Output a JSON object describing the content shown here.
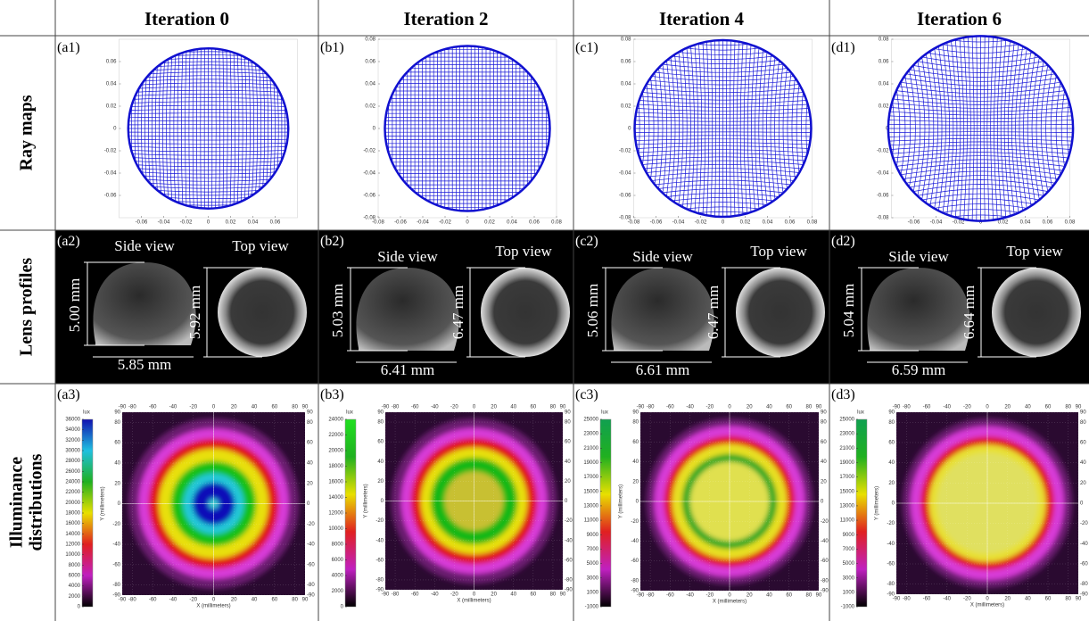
{
  "columns": [
    "Iteration 0",
    "Iteration 2",
    "Iteration 4",
    "Iteration 6"
  ],
  "rows": [
    [
      "Ray maps"
    ],
    [
      "Lens profiles"
    ],
    [
      "Illuminance",
      "distributions"
    ]
  ],
  "ray_maps": [
    {
      "label": "(a1)",
      "xlim": [
        -0.08,
        0.08
      ],
      "ylim": [
        -0.08,
        0.08
      ],
      "xticks": [
        -0.06,
        -0.04,
        -0.02,
        0,
        0.02,
        0.04,
        0.06
      ],
      "yticks": [
        -0.06,
        -0.04,
        -0.02,
        0,
        0.02,
        0.04,
        0.06
      ]
    },
    {
      "label": "(b1)",
      "xlim": [
        -0.08,
        0.08
      ],
      "ylim": [
        -0.08,
        0.08
      ],
      "xticks": [
        -0.08,
        -0.06,
        -0.04,
        -0.02,
        0,
        0.02,
        0.04,
        0.06,
        0.08
      ],
      "yticks": [
        -0.08,
        -0.06,
        -0.04,
        -0.02,
        0,
        0.02,
        0.04,
        0.06,
        0.08
      ]
    },
    {
      "label": "(c1)",
      "xlim": [
        -0.08,
        0.08
      ],
      "ylim": [
        -0.08,
        0.08
      ],
      "xticks": [
        -0.08,
        -0.06,
        -0.04,
        -0.02,
        0,
        0.02,
        0.04,
        0.06,
        0.08
      ],
      "yticks": [
        -0.08,
        -0.06,
        -0.04,
        -0.02,
        0,
        0.02,
        0.04,
        0.06,
        0.08
      ]
    },
    {
      "label": "(d1)",
      "xlim": [
        -0.08,
        0.08
      ],
      "ylim": [
        -0.08,
        0.08
      ],
      "xticks": [
        -0.06,
        -0.04,
        -0.02,
        0,
        0.02,
        0.04,
        0.06,
        0.08
      ],
      "yticks": [
        -0.08,
        -0.06,
        -0.04,
        -0.02,
        0,
        0.02,
        0.04,
        0.06,
        0.08
      ]
    }
  ],
  "lens_profiles": [
    {
      "label": "(a2)",
      "side_view": "Side view",
      "top_view": "Top view",
      "height": "5.00 mm",
      "width": "5.85 mm",
      "top_diameter": "5.92 mm"
    },
    {
      "label": "(b2)",
      "side_view": "Side view",
      "top_view": "Top view",
      "height": "5.03 mm",
      "width": "6.41 mm",
      "top_diameter": "6.47 mm"
    },
    {
      "label": "(c2)",
      "side_view": "Side view",
      "top_view": "Top view",
      "height": "5.06 mm",
      "width": "6.61 mm",
      "top_diameter": "6.47 mm"
    },
    {
      "label": "(d2)",
      "side_view": "Side view",
      "top_view": "Top view",
      "height": "5.04 mm",
      "width": "6.59 mm",
      "top_diameter": "6.64 mm"
    }
  ],
  "illuminance": [
    {
      "label": "(a3)",
      "unit": "lux",
      "x_label": "X (millimeters)",
      "y_label": "Y (millimeters)",
      "clim": [
        0,
        36000
      ],
      "cticks": [
        0,
        2000,
        4000,
        6000,
        8000,
        10000,
        12000,
        14000,
        16000,
        18000,
        20000,
        22000,
        24000,
        26000,
        28000,
        30000,
        32000,
        34000,
        36000
      ],
      "xlim": [
        -90,
        90
      ],
      "ticks": [
        -90,
        -80,
        -60,
        -40,
        -20,
        0,
        20,
        40,
        60,
        80,
        90
      ]
    },
    {
      "label": "(b3)",
      "unit": "lux",
      "x_label": "X (millimeters)",
      "y_label": "Y (millimeters)",
      "clim": [
        0,
        24000
      ],
      "cticks": [
        0,
        2000,
        4000,
        6000,
        8000,
        10000,
        12000,
        14000,
        16000,
        18000,
        20000,
        22000,
        24000
      ],
      "xlim": [
        -90,
        90
      ],
      "ticks": [
        -90,
        -80,
        -60,
        -40,
        -20,
        0,
        20,
        40,
        60,
        80,
        90
      ]
    },
    {
      "label": "(c3)",
      "unit": "lux",
      "x_label": "X (millimeters)",
      "y_label": "Y (millimeters)",
      "clim": [
        -1000,
        25000
      ],
      "cticks": [
        -1000,
        1000,
        3000,
        5000,
        7000,
        9000,
        11000,
        13000,
        15000,
        17000,
        19000,
        21000,
        23000,
        25000
      ],
      "xlim": [
        -90,
        90
      ],
      "ticks": [
        -90,
        -80,
        -60,
        -40,
        -20,
        0,
        20,
        40,
        60,
        80,
        90
      ]
    },
    {
      "label": "(d3)",
      "unit": "lux",
      "x_label": "X (millimeters)",
      "y_label": "Y (millimeters)",
      "clim": [
        -1000,
        25000
      ],
      "cticks": [
        -1000,
        1000,
        3000,
        5000,
        7000,
        9000,
        11000,
        13000,
        15000,
        17000,
        19000,
        21000,
        23000,
        25000
      ],
      "xlim": [
        -90,
        90
      ],
      "ticks": [
        -90,
        -80,
        -60,
        -40,
        -20,
        0,
        20,
        40,
        60,
        80,
        90
      ]
    }
  ]
}
